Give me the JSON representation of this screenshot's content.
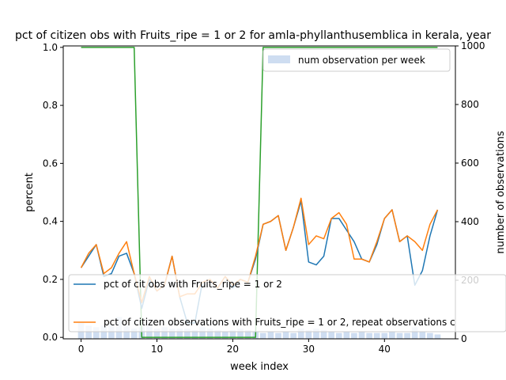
{
  "chart_data": {
    "type": "line",
    "title": "pct of citizen obs with Fruits_ripe = 1 or 2 for amla-phyllanthusemblica in kerala, year",
    "xlabel": "week index",
    "ylabel": "percent",
    "y2label": "number of observations",
    "xlim": [
      -2.35,
      49.35
    ],
    "ylim": [
      -0.005,
      1.005
    ],
    "y2lim": [
      0,
      1000
    ],
    "x_ticks": [
      0,
      10,
      20,
      30,
      40
    ],
    "y_ticks": [
      0.0,
      0.2,
      0.4,
      0.6,
      0.8,
      1.0
    ],
    "y2_ticks": [
      0,
      200,
      400,
      600,
      800,
      1000
    ],
    "x_tick_labels": [
      "0",
      "10",
      "20",
      "30",
      "40"
    ],
    "y_tick_labels": [
      "0.0",
      "0.2",
      "0.4",
      "0.6",
      "0.8",
      "1.0"
    ],
    "y2_tick_labels": [
      "0",
      "200",
      "400",
      "600",
      "800",
      "1000"
    ],
    "x": [
      0,
      1,
      2,
      3,
      4,
      5,
      6,
      7,
      8,
      9,
      10,
      11,
      12,
      13,
      14,
      15,
      16,
      17,
      18,
      19,
      20,
      21,
      22,
      23,
      24,
      25,
      26,
      27,
      28,
      29,
      30,
      31,
      32,
      33,
      34,
      35,
      36,
      37,
      38,
      39,
      40,
      41,
      42,
      43,
      44,
      45,
      46,
      47
    ],
    "series": [
      {
        "name": "pct of cit obs with Fruits_ripe = 1 or 2",
        "axis": "left",
        "color": "#1f77b4",
        "values": [
          0.24,
          0.28,
          0.32,
          0.21,
          0.22,
          0.28,
          0.29,
          0.22,
          0.1,
          0.2,
          0.16,
          0.18,
          0.28,
          0.14,
          0.05,
          0.05,
          0.19,
          0.2,
          0.17,
          0.21,
          0.17,
          0.2,
          0.19,
          0.27,
          0.39,
          0.4,
          0.42,
          0.3,
          0.38,
          0.47,
          0.26,
          0.25,
          0.28,
          0.41,
          0.41,
          0.37,
          0.33,
          0.27,
          0.26,
          0.32,
          0.41,
          0.44,
          0.33,
          0.35,
          0.18,
          0.23,
          0.35,
          0.44
        ]
      },
      {
        "name": "pct of citizen observations with Fruits_ripe = 1 or 2, repeat observations c",
        "axis": "left",
        "color": "#ff7f0e",
        "values": [
          0.24,
          0.29,
          0.32,
          0.22,
          0.24,
          0.29,
          0.33,
          0.22,
          0.12,
          0.21,
          0.16,
          0.18,
          0.28,
          0.14,
          0.15,
          0.15,
          0.19,
          0.2,
          0.17,
          0.21,
          0.18,
          0.2,
          0.19,
          0.28,
          0.39,
          0.4,
          0.42,
          0.3,
          0.38,
          0.48,
          0.32,
          0.35,
          0.34,
          0.41,
          0.43,
          0.39,
          0.27,
          0.27,
          0.26,
          0.33,
          0.41,
          0.44,
          0.33,
          0.35,
          0.33,
          0.3,
          0.39,
          0.44
        ]
      },
      {
        "name": "",
        "axis": "left",
        "color": "#2ca02c",
        "values": [
          1,
          1,
          1,
          1,
          1,
          1,
          1,
          1,
          0,
          0,
          0,
          0,
          0,
          0,
          0,
          0,
          0,
          0,
          0,
          0,
          0,
          0,
          0,
          0,
          1,
          1,
          1,
          1,
          1,
          1,
          1,
          1,
          1,
          1,
          1,
          1,
          1,
          1,
          1,
          1,
          1,
          1,
          1,
          1,
          1,
          1,
          1,
          1
        ]
      },
      {
        "name": "num observation per week",
        "axis": "right",
        "type": "bar",
        "color": "#aec7e8",
        "values": [
          55,
          45,
          40,
          45,
          50,
          75,
          45,
          35,
          40,
          45,
          35,
          40,
          35,
          35,
          35,
          30,
          40,
          35,
          30,
          25,
          30,
          35,
          30,
          25,
          20,
          25,
          20,
          25,
          20,
          35,
          30,
          35,
          30,
          25,
          20,
          25,
          20,
          25,
          20,
          20,
          20,
          25,
          20,
          20,
          40,
          25,
          20,
          15
        ]
      }
    ],
    "legend_upper": "top-right",
    "legend_lower": "bottom-left",
    "grid": false
  }
}
